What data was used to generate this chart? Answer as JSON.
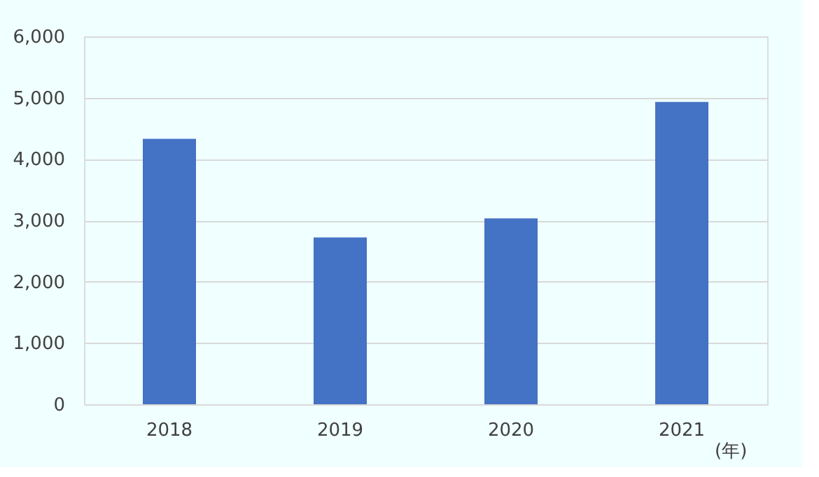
{
  "chart_data": {
    "type": "bar",
    "xlabel": "(年)",
    "categories": [
      "2018",
      "2019",
      "2020",
      "2021"
    ],
    "values": [
      4330,
      2720,
      3030,
      4930
    ],
    "color": "#4472c4",
    "ylim": [
      0,
      6000
    ],
    "yticks": [
      {
        "value": 0,
        "label": "0"
      },
      {
        "value": 1000,
        "label": "1,000"
      },
      {
        "value": 2000,
        "label": "2,000"
      },
      {
        "value": 3000,
        "label": "3,000"
      },
      {
        "value": 4000,
        "label": "4,000"
      },
      {
        "value": 5000,
        "label": "5,000"
      },
      {
        "value": 6000,
        "label": "6,000"
      }
    ],
    "grid": "y"
  }
}
